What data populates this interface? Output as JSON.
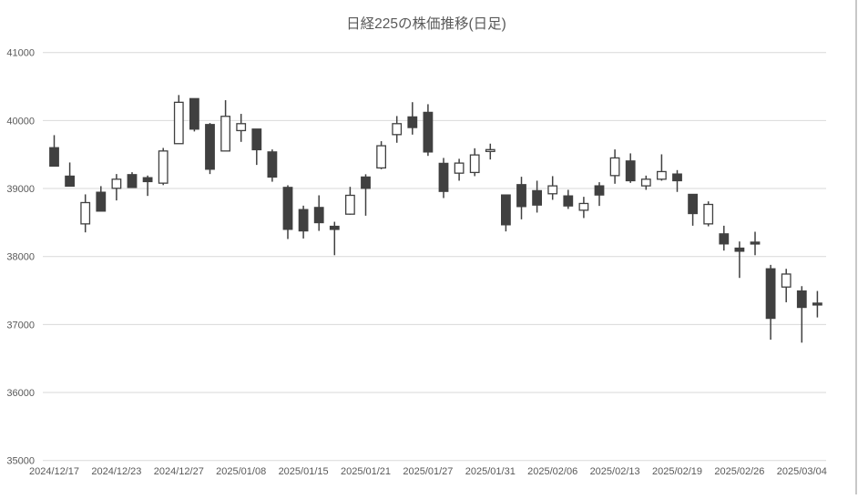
{
  "title": "日経225の株価推移(日足)",
  "chart_data": {
    "type": "candlestick",
    "title": "日経225の株価推移(日足)",
    "xlabel": "",
    "ylabel": "",
    "grid": true,
    "legend": "none",
    "y_axis": {
      "min": 35000,
      "max": 41000,
      "step": 1000,
      "ticks": [
        "35000",
        "36000",
        "37000",
        "38000",
        "39000",
        "40000",
        "41000"
      ]
    },
    "x_tick_labels": [
      {
        "index": 0,
        "label": "2024/12/17"
      },
      {
        "index": 4,
        "label": "2024/12/23"
      },
      {
        "index": 8,
        "label": "2024/12/27"
      },
      {
        "index": 12,
        "label": "2025/01/08"
      },
      {
        "index": 16,
        "label": "2025/01/15"
      },
      {
        "index": 20,
        "label": "2025/01/21"
      },
      {
        "index": 24,
        "label": "2025/01/27"
      },
      {
        "index": 28,
        "label": "2025/01/31"
      },
      {
        "index": 32,
        "label": "2025/02/06"
      },
      {
        "index": 36,
        "label": "2025/02/13"
      },
      {
        "index": 40,
        "label": "2025/02/19"
      },
      {
        "index": 44,
        "label": "2025/02/26"
      },
      {
        "index": 48,
        "label": "2025/03/04"
      }
    ],
    "candles_format": [
      "open",
      "high",
      "low",
      "close"
    ],
    "candles": [
      [
        39600,
        39785,
        39330,
        39330
      ],
      [
        39182,
        39383,
        39035,
        39035
      ],
      [
        38480,
        38914,
        38355,
        38793
      ],
      [
        38945,
        39035,
        38668,
        38668
      ],
      [
        39003,
        39213,
        38825,
        39137
      ],
      [
        39204,
        39240,
        39016,
        39016
      ],
      [
        39159,
        39191,
        38891,
        39102
      ],
      [
        39079,
        39597,
        39050,
        39552
      ],
      [
        39660,
        40375,
        39660,
        40268
      ],
      [
        40322,
        40322,
        39839,
        39874
      ],
      [
        39941,
        39964,
        39213,
        39284
      ],
      [
        39552,
        40299,
        39552,
        40062
      ],
      [
        39852,
        40098,
        39686,
        39954
      ],
      [
        39874,
        39874,
        39347,
        39571
      ],
      [
        39538,
        39575,
        39100,
        39169
      ],
      [
        39016,
        39048,
        38257,
        38400
      ],
      [
        38690,
        38748,
        38265,
        38377
      ],
      [
        38721,
        38900,
        38377,
        38498
      ],
      [
        38444,
        38511,
        38019,
        38399
      ],
      [
        38623,
        39025,
        38615,
        38900
      ],
      [
        39169,
        39210,
        38600,
        39003
      ],
      [
        39303,
        39696,
        39284,
        39629
      ],
      [
        39793,
        40066,
        39673,
        39954
      ],
      [
        40053,
        40270,
        39793,
        39897
      ],
      [
        40120,
        40240,
        39480,
        39538
      ],
      [
        39370,
        39450,
        38860,
        38958
      ],
      [
        39226,
        39437,
        39115,
        39374
      ],
      [
        39236,
        39592,
        39182,
        39494
      ],
      [
        39555,
        39660,
        39427,
        39572
      ],
      [
        38905,
        38905,
        38369,
        38467
      ],
      [
        39057,
        39173,
        38547,
        38735
      ],
      [
        38968,
        39115,
        38646,
        38757
      ],
      [
        38923,
        39182,
        38834,
        39039
      ],
      [
        38891,
        38981,
        38700,
        38744
      ],
      [
        38681,
        38878,
        38566,
        38780
      ],
      [
        39039,
        39093,
        38744,
        38905
      ],
      [
        39190,
        39575,
        39070,
        39450
      ],
      [
        39405,
        39517,
        39083,
        39115
      ],
      [
        39039,
        39190,
        38981,
        39137
      ],
      [
        39137,
        39503,
        39115,
        39249
      ],
      [
        39213,
        39271,
        38950,
        39115
      ],
      [
        38914,
        38914,
        38453,
        38632
      ],
      [
        38480,
        38811,
        38444,
        38766
      ],
      [
        38333,
        38453,
        38087,
        38186
      ],
      [
        38123,
        38221,
        37685,
        38078
      ],
      [
        38211,
        38364,
        38019,
        38206
      ],
      [
        37819,
        37877,
        36777,
        37091
      ],
      [
        37551,
        37819,
        37327,
        37742
      ],
      [
        37493,
        37564,
        36733,
        37252
      ],
      [
        37314,
        37493,
        37104,
        37310
      ]
    ],
    "colors": {
      "up_fill": "#FFFFFF",
      "down_fill": "#404040",
      "outline": "#404040",
      "grid": "#D9D9D9",
      "text": "#595959",
      "window_border": "#C8C8C8"
    }
  }
}
